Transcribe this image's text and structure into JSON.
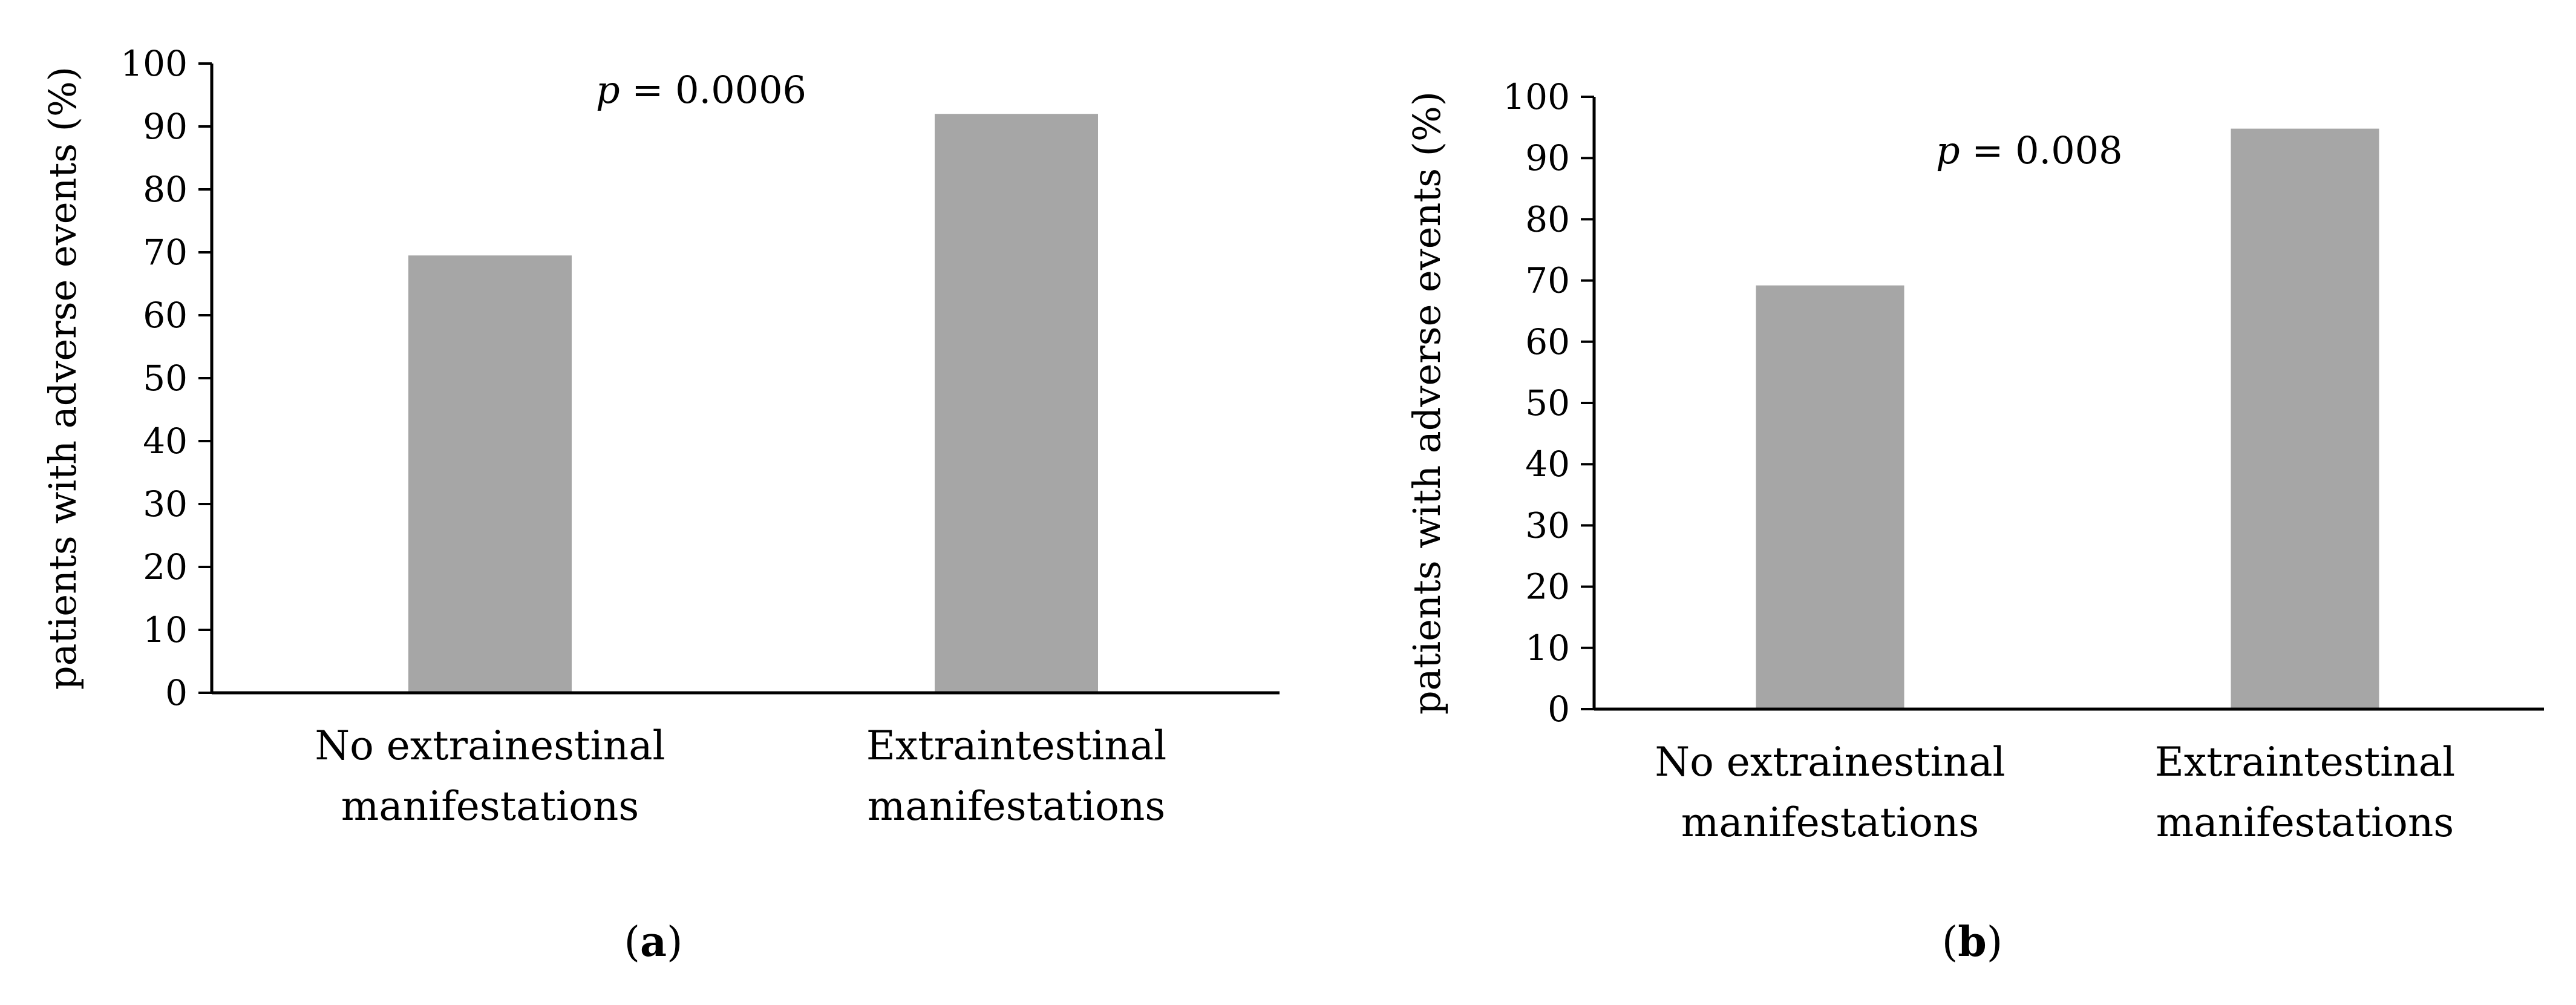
{
  "chart_data": [
    {
      "type": "bar",
      "title": "",
      "panel_label": "(a)",
      "categories": [
        "No extrainestinal manifestations",
        "Extraintestinal manifestations"
      ],
      "category_lines": [
        [
          "No extrainestinal",
          "manifestations"
        ],
        [
          "Extraintestinal",
          "manifestations"
        ]
      ],
      "values": [
        69.5,
        92.0
      ],
      "xlabel": "",
      "ylabel": "patients with adverse events (%)",
      "ylim": [
        0,
        100
      ],
      "yticks": [
        0,
        10,
        20,
        30,
        40,
        50,
        60,
        70,
        80,
        90,
        100
      ],
      "grid": false,
      "legend": "none",
      "annotation": {
        "prefix": "p",
        "text": " = 0.0006"
      },
      "bar_color": "#a6a6a6"
    },
    {
      "type": "bar",
      "title": "",
      "panel_label": "(b)",
      "categories": [
        "No extrainestinal manifestations",
        "Extraintestinal manifestations"
      ],
      "category_lines": [
        [
          "No extrainestinal",
          "manifestations"
        ],
        [
          "Extraintestinal",
          "manifestations"
        ]
      ],
      "values": [
        69.2,
        94.8
      ],
      "xlabel": "",
      "ylabel": "patients with adverse events (%)",
      "ylim": [
        0,
        100
      ],
      "yticks": [
        0,
        10,
        20,
        30,
        40,
        50,
        60,
        70,
        80,
        90,
        100
      ],
      "grid": false,
      "legend": "none",
      "annotation": {
        "prefix": "p",
        "text": " = 0.008"
      },
      "bar_color": "#a6a6a6"
    }
  ]
}
